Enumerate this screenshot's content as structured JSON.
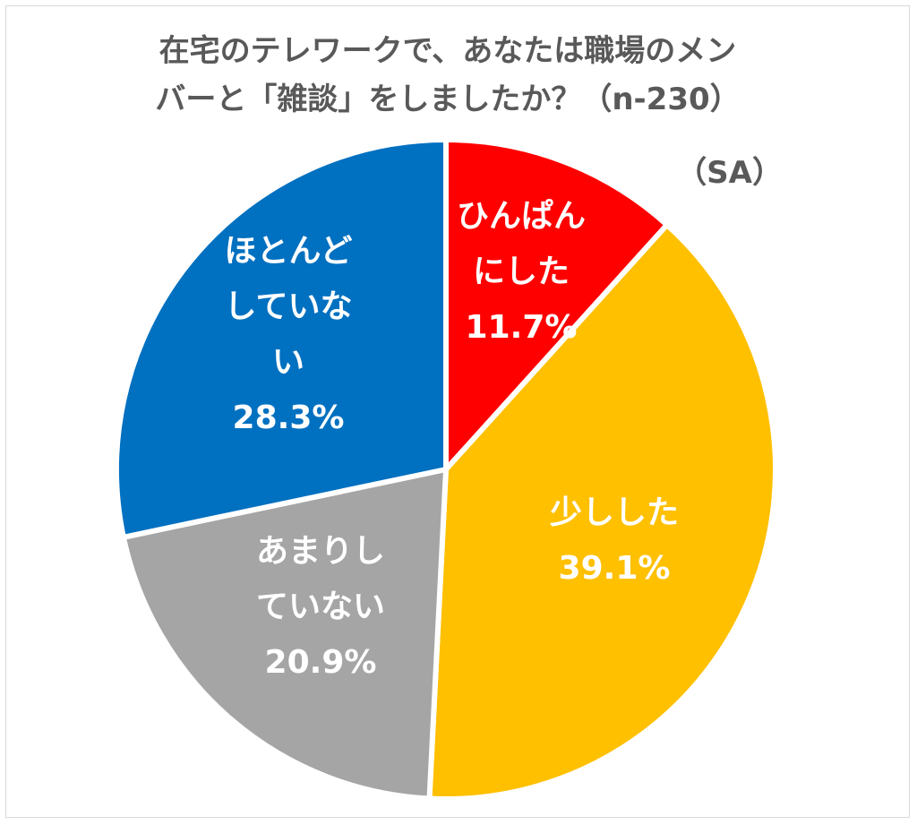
{
  "chart_data": {
    "type": "pie",
    "title_lines": [
      "在宅のテレワークで、あなたは職場のメン",
      "バーと「雑談」をしましたか？（n-230）"
    ],
    "subtitle": "（SA）",
    "slices": [
      {
        "label_lines": [
          "ひんぱん",
          "にした"
        ],
        "value": 11.7,
        "value_text": "11.7%",
        "color": "#ff0000"
      },
      {
        "label_lines": [
          "少しした"
        ],
        "value": 39.1,
        "value_text": "39.1%",
        "color": "#ffc000"
      },
      {
        "label_lines": [
          "あまりし",
          "ていない"
        ],
        "value": 20.9,
        "value_text": "20.9%",
        "color": "#a5a5a5"
      },
      {
        "label_lines": [
          "ほとんど",
          "していな",
          "い"
        ],
        "value": 28.3,
        "value_text": "28.3%",
        "color": "#0070c0"
      }
    ]
  }
}
